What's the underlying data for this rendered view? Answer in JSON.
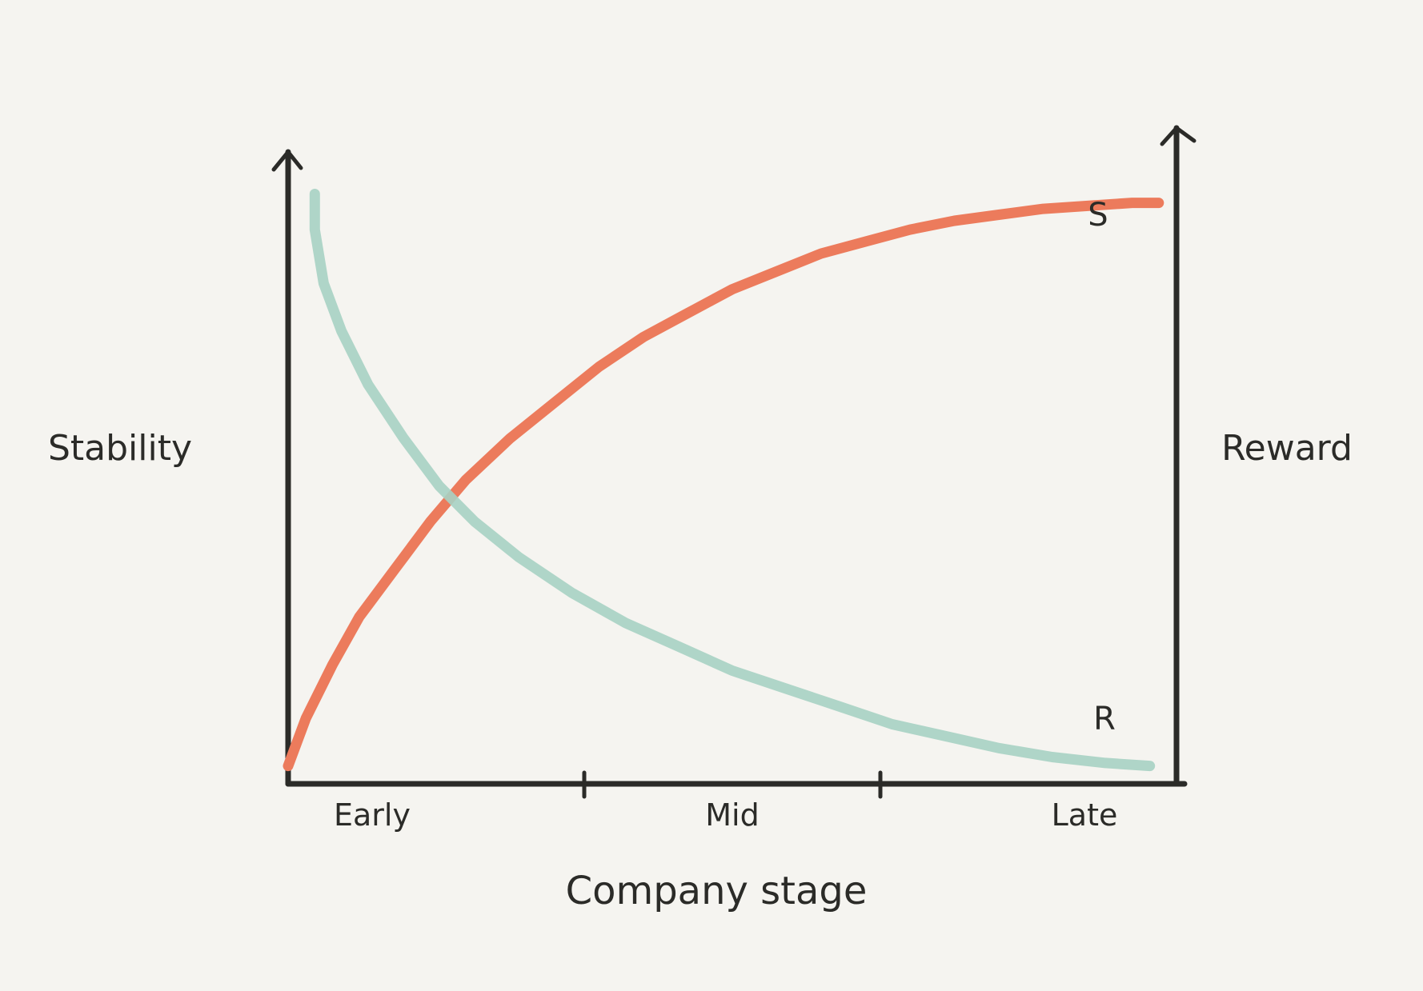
{
  "chart_data": {
    "type": "line",
    "title": "",
    "xlabel": "Company stage",
    "ylabel_left": "Stability",
    "ylabel_right": "Reward",
    "x_categories": [
      "Early",
      "Mid",
      "Late"
    ],
    "xlim": [
      0,
      1
    ],
    "ylim": [
      0,
      1
    ],
    "grid": false,
    "series": [
      {
        "name": "S",
        "color": "#ec7b5c",
        "x": [
          0.0,
          0.02,
          0.05,
          0.08,
          0.12,
          0.16,
          0.2,
          0.25,
          0.3,
          0.35,
          0.4,
          0.45,
          0.5,
          0.55,
          0.6,
          0.65,
          0.7,
          0.75,
          0.8,
          0.85,
          0.9,
          0.95,
          0.98
        ],
        "y": [
          0.03,
          0.11,
          0.2,
          0.28,
          0.36,
          0.44,
          0.51,
          0.58,
          0.64,
          0.7,
          0.75,
          0.79,
          0.83,
          0.86,
          0.89,
          0.91,
          0.93,
          0.945,
          0.955,
          0.965,
          0.97,
          0.975,
          0.975
        ]
      },
      {
        "name": "R",
        "color": "#a7d1c3",
        "x": [
          0.03,
          0.03,
          0.04,
          0.06,
          0.09,
          0.13,
          0.17,
          0.21,
          0.26,
          0.32,
          0.38,
          0.44,
          0.5,
          0.56,
          0.62,
          0.68,
          0.74,
          0.8,
          0.86,
          0.92,
          0.97
        ],
        "y": [
          0.99,
          0.93,
          0.84,
          0.76,
          0.67,
          0.58,
          0.5,
          0.44,
          0.38,
          0.32,
          0.27,
          0.23,
          0.19,
          0.16,
          0.13,
          0.1,
          0.08,
          0.06,
          0.045,
          0.035,
          0.03
        ]
      }
    ]
  }
}
